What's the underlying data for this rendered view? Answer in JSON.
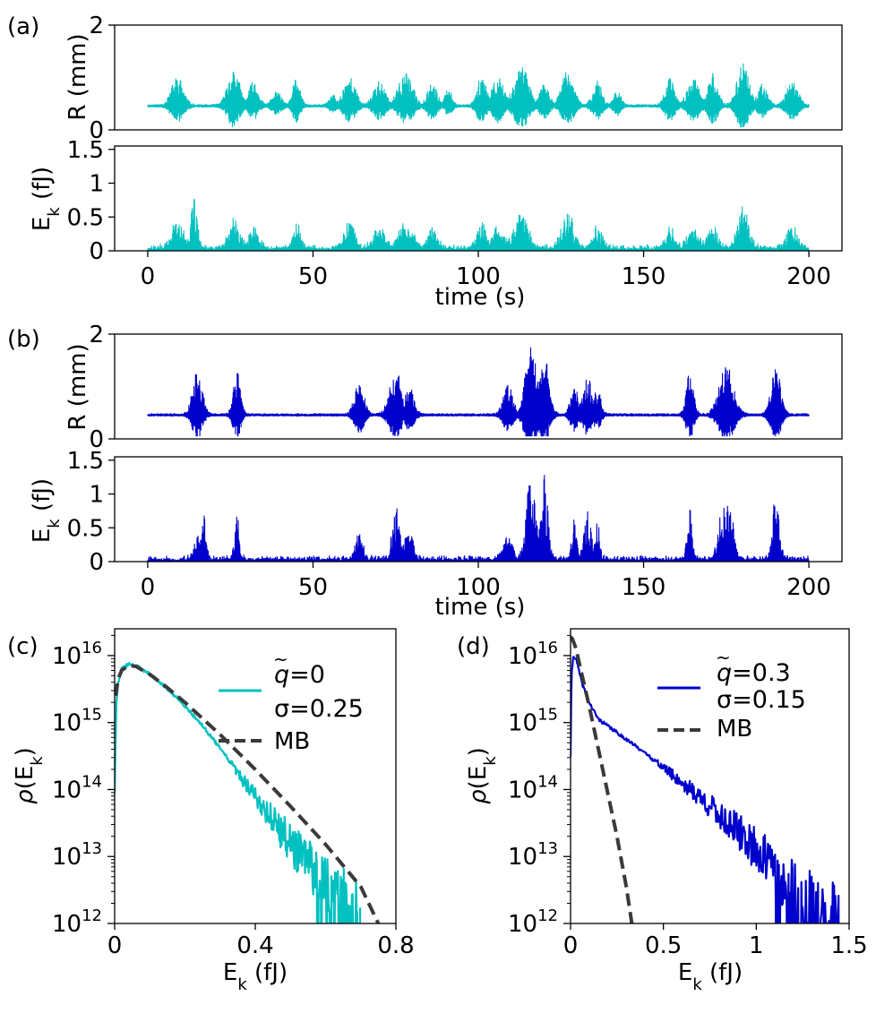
{
  "figure_caption_labels": [
    "(a)",
    "(b)",
    "(c)",
    "(d)"
  ],
  "colors": {
    "cyan": "#00C0C0",
    "blue": "#0000CC",
    "mb": "#3a3a3a",
    "axis": "#000000"
  },
  "chart_data": [
    {
      "id": "a-top",
      "panel_label": "(a)",
      "type": "line",
      "title": "",
      "ylabel": "R (mm)",
      "xlabel": "",
      "xlim": [
        -10,
        210
      ],
      "ylim": [
        0,
        2
      ],
      "yticks": [
        0,
        2
      ],
      "ytick_labels": [
        "0",
        "2"
      ],
      "xticks": [],
      "color": "#00C0C0",
      "signal": "R",
      "seed": 11,
      "baseline": 0.45,
      "bursts": [
        [
          9,
          2.5,
          0.55
        ],
        [
          26,
          2.5,
          0.7
        ],
        [
          32,
          2,
          0.45
        ],
        [
          39,
          2,
          0.25
        ],
        [
          45,
          1.5,
          0.55
        ],
        [
          56,
          1.5,
          0.2
        ],
        [
          61,
          2.5,
          0.55
        ],
        [
          70,
          2.5,
          0.45
        ],
        [
          78,
          3,
          0.6
        ],
        [
          86,
          2,
          0.45
        ],
        [
          91,
          1.5,
          0.3
        ],
        [
          101,
          2,
          0.55
        ],
        [
          106,
          2.5,
          0.55
        ],
        [
          113,
          3,
          0.75
        ],
        [
          120,
          2,
          0.4
        ],
        [
          127,
          2.5,
          0.65
        ],
        [
          136,
          2,
          0.45
        ],
        [
          142,
          1.5,
          0.3
        ],
        [
          158,
          2,
          0.5
        ],
        [
          165,
          2.5,
          0.5
        ],
        [
          171,
          2,
          0.6
        ],
        [
          180,
          2.5,
          0.8
        ],
        [
          186,
          2,
          0.4
        ],
        [
          195,
          2.5,
          0.45
        ]
      ]
    },
    {
      "id": "a-bottom",
      "type": "line",
      "ylabel": "E_k (fJ)",
      "ylabel_main": "E",
      "ylabel_sub": "k",
      "ylabel_rest": " (fJ)",
      "xlabel": "time (s)",
      "xlim": [
        -10,
        210
      ],
      "ylim": [
        0,
        1.55
      ],
      "yticks": [
        0,
        0.5,
        1,
        1.5
      ],
      "ytick_labels": [
        "0",
        "0.5",
        "1",
        "1.5"
      ],
      "xticks": [
        0,
        50,
        100,
        150,
        200
      ],
      "xtick_labels": [
        "0",
        "50",
        "100",
        "150",
        "200"
      ],
      "color": "#00C0C0",
      "signal": "E",
      "seed": 12,
      "bursts": [
        [
          9,
          2.5,
          0.4
        ],
        [
          14,
          1.5,
          0.7
        ],
        [
          26,
          2.5,
          0.4
        ],
        [
          32,
          2,
          0.3
        ],
        [
          45,
          1.5,
          0.4
        ],
        [
          61,
          2.5,
          0.35
        ],
        [
          70,
          2.5,
          0.3
        ],
        [
          78,
          3,
          0.4
        ],
        [
          86,
          2,
          0.3
        ],
        [
          101,
          2,
          0.35
        ],
        [
          106,
          2.5,
          0.35
        ],
        [
          113,
          3,
          0.5
        ],
        [
          127,
          2.5,
          0.55
        ],
        [
          136,
          2,
          0.3
        ],
        [
          158,
          2,
          0.3
        ],
        [
          165,
          2.5,
          0.3
        ],
        [
          171,
          2,
          0.35
        ],
        [
          180,
          2.5,
          0.62
        ],
        [
          195,
          2.5,
          0.3
        ]
      ]
    },
    {
      "id": "b-top",
      "panel_label": "(b)",
      "type": "line",
      "ylabel": "R (mm)",
      "xlabel": "",
      "xlim": [
        -10,
        210
      ],
      "ylim": [
        0,
        2
      ],
      "yticks": [
        0,
        2
      ],
      "ytick_labels": [
        "0",
        "2"
      ],
      "xticks": [],
      "color": "#0000CC",
      "signal": "R",
      "seed": 21,
      "baseline": 0.45,
      "bursts": [
        [
          15,
          2,
          0.85
        ],
        [
          27,
          1.5,
          0.8
        ],
        [
          64,
          2,
          0.6
        ],
        [
          75,
          2.5,
          0.85
        ],
        [
          79,
          2,
          0.55
        ],
        [
          109,
          2,
          0.55
        ],
        [
          116,
          2.5,
          1.3
        ],
        [
          120,
          2,
          1.1
        ],
        [
          129,
          1.5,
          0.6
        ],
        [
          133,
          2,
          0.7
        ],
        [
          136,
          1.5,
          0.5
        ],
        [
          164,
          1.5,
          0.85
        ],
        [
          175,
          3,
          0.95
        ],
        [
          190,
          2,
          0.9
        ]
      ]
    },
    {
      "id": "b-bottom",
      "type": "line",
      "ylabel": "E_k (fJ)",
      "ylabel_main": "E",
      "ylabel_sub": "k",
      "ylabel_rest": " (fJ)",
      "xlabel": "time (s)",
      "xlim": [
        -10,
        210
      ],
      "ylim": [
        0,
        1.55
      ],
      "yticks": [
        0,
        0.5,
        1,
        1.5
      ],
      "ytick_labels": [
        "0",
        "0.5",
        "1",
        "1.5"
      ],
      "xticks": [
        0,
        50,
        100,
        150,
        200
      ],
      "xtick_labels": [
        "0",
        "50",
        "100",
        "150",
        "200"
      ],
      "color": "#0000CC",
      "signal": "E",
      "seed": 22,
      "bursts": [
        [
          15,
          1.5,
          0.4
        ],
        [
          17,
          1,
          0.65
        ],
        [
          27,
          1,
          0.75
        ],
        [
          64,
          1.5,
          0.45
        ],
        [
          75,
          1.5,
          0.8
        ],
        [
          79,
          2,
          0.4
        ],
        [
          109,
          2,
          0.4
        ],
        [
          116,
          2,
          1.3
        ],
        [
          120,
          1.5,
          1.2
        ],
        [
          129,
          1,
          0.6
        ],
        [
          133,
          1.5,
          0.7
        ],
        [
          136,
          1,
          0.55
        ],
        [
          164,
          1.2,
          0.75
        ],
        [
          174,
          2,
          0.8
        ],
        [
          176,
          1.5,
          1.05
        ],
        [
          190,
          1.5,
          0.9
        ]
      ]
    },
    {
      "id": "c",
      "panel_label": "(c)",
      "type": "line",
      "yscale": "log",
      "ylabel": "rho(E_k)",
      "xlabel": "E_k (fJ)",
      "xlim": [
        0,
        0.8
      ],
      "xticks": [
        0,
        0.4,
        0.8
      ],
      "xtick_labels": [
        "0",
        "0.4",
        "0.8"
      ],
      "ylim_log10": [
        12,
        16.4
      ],
      "yticks_log10": [
        12,
        13,
        14,
        15,
        16
      ],
      "ytick_base": "10",
      "ytick_exponents": [
        "12",
        "13",
        "14",
        "15",
        "16"
      ],
      "legend": {
        "placement": "top-right",
        "entries": [
          {
            "label_q": "q",
            "label_value": "=0",
            "style": "solid",
            "color": "#00C0C0"
          },
          {
            "label": "σ=0.25",
            "style": "none"
          },
          {
            "label": "MB",
            "style": "dashed",
            "color": "#3a3a3a"
          }
        ]
      },
      "series": [
        {
          "name": "simulation",
          "color": "#00C0C0",
          "style": "solid",
          "seed": 31,
          "noise": "heavy_tail",
          "x": [
            0,
            0.005,
            0.01,
            0.02,
            0.04,
            0.06,
            0.1,
            0.15,
            0.2,
            0.25,
            0.3,
            0.35,
            0.4,
            0.45,
            0.5,
            0.55,
            0.6,
            0.65,
            0.7
          ],
          "log10y": [
            14.0,
            15.3,
            15.6,
            15.8,
            15.87,
            15.85,
            15.72,
            15.5,
            15.25,
            14.95,
            14.62,
            14.25,
            13.9,
            13.55,
            13.2,
            12.9,
            12.6,
            12.4,
            12.1
          ]
        },
        {
          "name": "MB",
          "color": "#3a3a3a",
          "style": "dashed",
          "x": [
            0.003,
            0.01,
            0.02,
            0.04,
            0.06,
            0.1,
            0.15,
            0.2,
            0.3,
            0.4,
            0.5,
            0.6,
            0.7,
            0.75
          ],
          "log10y": [
            15.4,
            15.65,
            15.78,
            15.85,
            15.84,
            15.72,
            15.52,
            15.3,
            14.82,
            14.3,
            13.75,
            13.18,
            12.55,
            12.0
          ]
        }
      ]
    },
    {
      "id": "d",
      "panel_label": "(d)",
      "type": "line",
      "yscale": "log",
      "ylabel": "rho(E_k)",
      "xlabel": "E_k (fJ)",
      "xlim": [
        0,
        1.5
      ],
      "xticks": [
        0,
        0.5,
        1,
        1.5
      ],
      "xtick_labels": [
        "0",
        "0.5",
        "1",
        "1.5"
      ],
      "ylim_log10": [
        12,
        16.4
      ],
      "yticks_log10": [
        12,
        13,
        14,
        15,
        16
      ],
      "ytick_base": "10",
      "ytick_exponents": [
        "12",
        "13",
        "14",
        "15",
        "16"
      ],
      "legend": {
        "placement": "top-right",
        "entries": [
          {
            "label_q": "q",
            "label_value": "=0.3",
            "style": "solid",
            "color": "#0000CC"
          },
          {
            "label": "σ=0.15",
            "style": "none"
          },
          {
            "label": "MB",
            "style": "dashed",
            "color": "#3a3a3a"
          }
        ]
      },
      "series": [
        {
          "name": "simulation",
          "color": "#0000CC",
          "style": "solid",
          "seed": 41,
          "noise": "heavy_tail",
          "x": [
            0,
            0.005,
            0.015,
            0.03,
            0.06,
            0.1,
            0.15,
            0.2,
            0.3,
            0.4,
            0.5,
            0.6,
            0.7,
            0.8,
            0.9,
            1.0,
            1.1,
            1.2,
            1.3,
            1.45
          ],
          "log10y": [
            14.5,
            15.7,
            16.0,
            15.95,
            15.6,
            15.3,
            15.05,
            14.95,
            14.75,
            14.55,
            14.33,
            14.1,
            13.88,
            13.62,
            13.38,
            13.1,
            12.8,
            12.5,
            12.25,
            12.05
          ]
        },
        {
          "name": "MB",
          "color": "#3a3a3a",
          "style": "dashed",
          "x": [
            0,
            0.01,
            0.03,
            0.05,
            0.1,
            0.15,
            0.2,
            0.25,
            0.3,
            0.33
          ],
          "log10y": [
            16.28,
            16.25,
            16.1,
            15.85,
            15.25,
            14.6,
            13.95,
            13.3,
            12.55,
            12.0
          ]
        }
      ]
    }
  ]
}
